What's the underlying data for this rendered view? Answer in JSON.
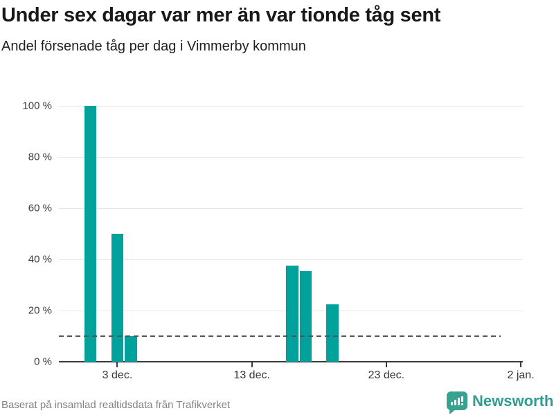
{
  "header": {
    "title": "Under sex dagar var mer än var tionde tåg sent",
    "subtitle": "Andel försenade tåg per dag i Vimmerby kommun"
  },
  "footer": {
    "source": "Baserat på insamlad realtidsdata från Trafikverket",
    "brand": "Newsworthy"
  },
  "colors": {
    "bar": "#00a29b",
    "grid": "#e7e7e7",
    "axis": "#3a3a3a",
    "reference_line": "#545454",
    "title_text": "#191919",
    "axis_text": "#3d3d3d",
    "muted_text": "#838383",
    "brand": "#2f9d90"
  },
  "chart_data": {
    "type": "bar",
    "title": "Under sex dagar var mer än var tionde tåg sent",
    "subtitle": "Andel försenade tåg per dag i Vimmerby kommun",
    "unit": "%",
    "categories": [
      "1 dec.",
      "3 dec.",
      "4 dec.",
      "16 dec.",
      "17 dec.",
      "19 dec."
    ],
    "day_offsets": [
      0,
      2,
      3,
      15,
      16,
      18
    ],
    "values": [
      100,
      50,
      10,
      37.5,
      35.5,
      22.5
    ],
    "ylim": [
      0,
      100
    ],
    "yticks": [
      {
        "value": 0,
        "label": "0 %"
      },
      {
        "value": 20,
        "label": "20 %"
      },
      {
        "value": 40,
        "label": "40 %"
      },
      {
        "value": 60,
        "label": "60 %"
      },
      {
        "value": 80,
        "label": "80 %"
      },
      {
        "value": 100,
        "label": "100 %"
      }
    ],
    "xticks": [
      {
        "day": 2,
        "label": "3 dec."
      },
      {
        "day": 12,
        "label": "13 dec."
      },
      {
        "day": 22,
        "label": "23 dec."
      },
      {
        "day": 32,
        "label": "2 jan."
      }
    ],
    "x_domain_days": [
      -2.35,
      32.15
    ],
    "reference_line": {
      "value": 10,
      "style": "dashed"
    },
    "grid": true,
    "legend": false
  }
}
